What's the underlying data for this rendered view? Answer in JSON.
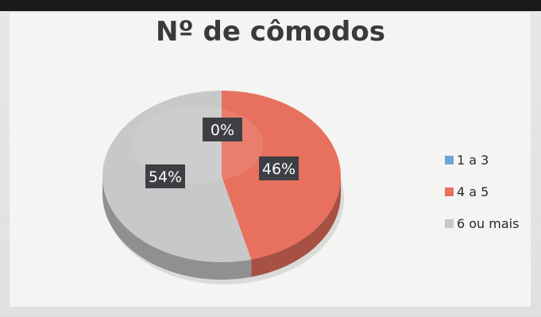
{
  "header": {
    "strip_text": ""
  },
  "chart_data": {
    "type": "pie",
    "title": "Nº de cômodos",
    "labels": [
      "1 a 3",
      "4 a 5",
      "6 ou mais"
    ],
    "values": [
      0,
      46,
      54
    ],
    "data_labels": [
      "0%",
      "46%",
      "54%"
    ],
    "colors": [
      "#6ea3d8",
      "#e8705e",
      "#c9c8c8"
    ],
    "legend_position": "right",
    "style": "3d"
  }
}
